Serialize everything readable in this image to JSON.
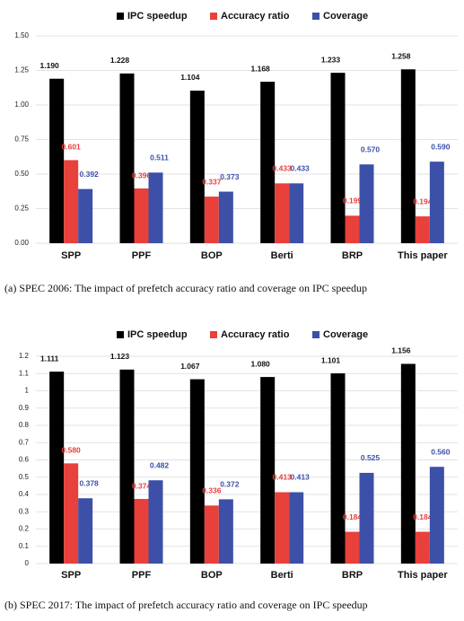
{
  "chart_data": [
    {
      "type": "bar",
      "caption": "(a) SPEC 2006: The impact of prefetch accuracy ratio and coverage on IPC speedup",
      "categories": [
        "SPP",
        "PPF",
        "BOP",
        "Berti",
        "BRP",
        "This paper"
      ],
      "series": [
        {
          "name": "IPC speedup",
          "color": "#000000",
          "values": [
            1.19,
            1.228,
            1.104,
            1.168,
            1.233,
            1.258
          ],
          "value_labels": [
            "1.190",
            "1.228",
            "1.104",
            "1.168",
            "1.233",
            "1.258"
          ]
        },
        {
          "name": "Accuracy ratio",
          "color": "#e8403a",
          "values": [
            0.601,
            0.396,
            0.337,
            0.433,
            0.199,
            0.194
          ],
          "value_labels": [
            "0.601",
            "0.396",
            "0.337",
            "0.433",
            "0.199",
            "0.194"
          ]
        },
        {
          "name": "Coverage",
          "color": "#3c50a8",
          "values": [
            0.392,
            0.511,
            0.373,
            0.433,
            0.57,
            0.59
          ],
          "value_labels": [
            "0.392",
            "0.511",
            "0.373",
            "0.433",
            "0.570",
            "0.590"
          ]
        }
      ],
      "ylim": [
        0,
        1.5
      ],
      "yticks": [
        {
          "value": 0,
          "label": "0.00"
        },
        0.25,
        {
          "value": 0.5,
          "label": "0.50"
        },
        0.75,
        {
          "value": 1,
          "label": "1.00"
        },
        1.25,
        {
          "value": 1.5,
          "label": "1.50"
        }
      ],
      "grid": true,
      "legend": "top"
    },
    {
      "type": "bar",
      "caption": "(b) SPEC 2017: The impact of prefetch accuracy ratio and coverage on IPC speedup",
      "categories": [
        "SPP",
        "PPF",
        "BOP",
        "Berti",
        "BRP",
        "This paper"
      ],
      "series": [
        {
          "name": "IPC speedup",
          "color": "#000000",
          "values": [
            1.111,
            1.123,
            1.067,
            1.08,
            1.101,
            1.156
          ],
          "value_labels": [
            "1.111",
            "1.123",
            "1.067",
            "1.080",
            "1.101",
            "1.156"
          ]
        },
        {
          "name": "Accuracy ratio",
          "color": "#e8403a",
          "values": [
            0.58,
            0.374,
            0.336,
            0.413,
            0.184,
            0.184
          ],
          "value_labels": [
            "0.580",
            "0.374",
            "0.336",
            "0.413",
            "0.184",
            "0.184"
          ]
        },
        {
          "name": "Coverage",
          "color": "#3c50a8",
          "values": [
            0.378,
            0.482,
            0.372,
            0.413,
            0.525,
            0.56
          ],
          "value_labels": [
            "0.378",
            "0.482",
            "0.372",
            "0.413",
            "0.525",
            "0.560"
          ]
        }
      ],
      "ylim": [
        0,
        1.2
      ],
      "yticks": [
        0,
        0.1,
        0.2,
        0.3,
        0.4,
        0.5,
        0.6,
        0.7,
        0.8,
        0.9,
        1,
        1.1,
        1.2
      ],
      "grid": true,
      "legend": "top"
    }
  ]
}
